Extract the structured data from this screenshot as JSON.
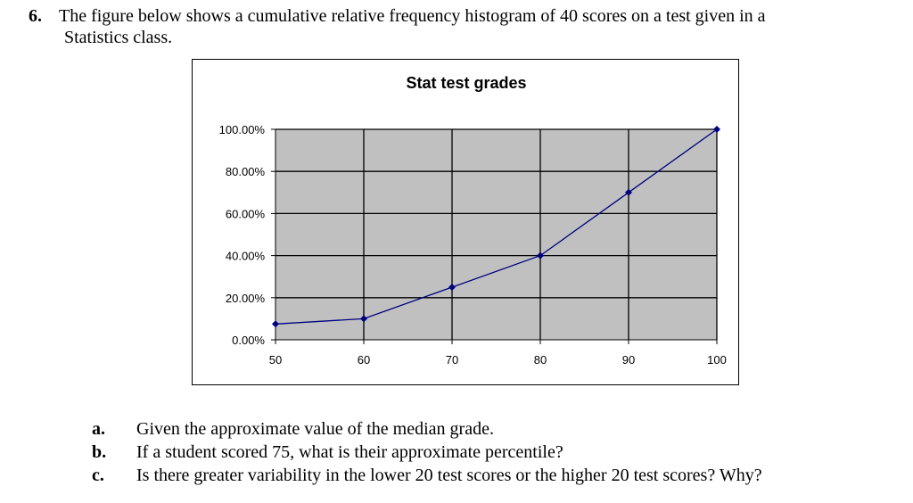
{
  "question": {
    "number": "6.",
    "text_line1": "The figure below shows a cumulative relative frequency histogram of 40 scores on a test given in a",
    "text_line2": "Statistics class."
  },
  "chart_data": {
    "type": "line",
    "title": "Stat test grades",
    "x": [
      50,
      60,
      70,
      80,
      90,
      100
    ],
    "values": [
      0.075,
      0.1,
      0.25,
      0.4,
      0.7,
      1.0
    ],
    "x_tick_labels": [
      "50",
      "60",
      "70",
      "80",
      "90",
      "100"
    ],
    "y_tick_labels": [
      "0.00%",
      "20.00%",
      "40.00%",
      "60.00%",
      "80.00%",
      "100.00%"
    ],
    "y_ticks": [
      0,
      0.2,
      0.4,
      0.6,
      0.8,
      1.0
    ],
    "xlim": [
      50,
      100
    ],
    "ylim": [
      0,
      1
    ],
    "grid": true,
    "colors": {
      "plot_background": "#c0c0c0",
      "line": "#000080",
      "grid": "#000000"
    }
  },
  "parts": [
    {
      "label": "a.",
      "text": "Given the approximate value of the median grade."
    },
    {
      "label": "b.",
      "text": "If a student scored 75, what is their approximate percentile?"
    },
    {
      "label": "c.",
      "text": "Is there greater variability in the lower 20 test scores or the higher 20 test scores?  Why?"
    }
  ]
}
